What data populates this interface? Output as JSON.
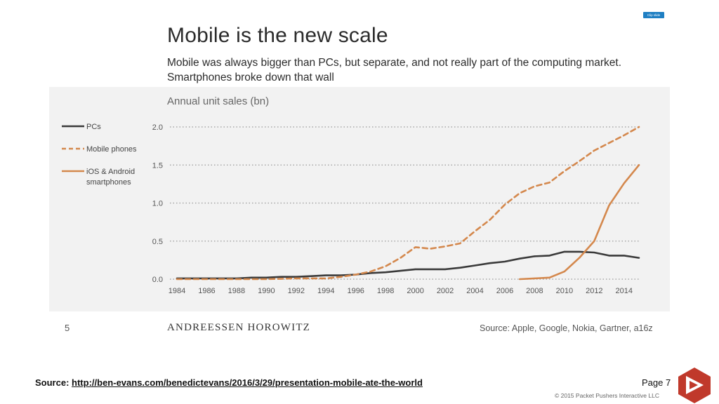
{
  "slide": {
    "title": "Mobile is the new scale",
    "subtitle": "Mobile was always bigger than PCs, but separate, and not really part of the computing market. Smartphones broke down that wall",
    "clip_badge": "Clip slide",
    "number": "5",
    "brand": "ANDREESSEN HOROWITZ",
    "chart_source": "Source: Apple, Google, Nokia, Gartner, a16z"
  },
  "footer": {
    "source_label": "Source:",
    "source_url": "http://ben-evans.com/benedictevans/2016/3/29/presentation-mobile-ate-the-world",
    "page_label": "Page",
    "page_number": "7",
    "copyright": "© 2015 Packet Pushers Interactive LLC"
  },
  "colors": {
    "pcs": "#3a3a3a",
    "mobile": "#d4884d",
    "smartphones": "#d4884d",
    "grid": "#999999",
    "panel": "#f2f2f2",
    "logo": "#c0392b"
  },
  "chart_data": {
    "type": "line",
    "title": "Annual unit sales (bn)",
    "xlim": [
      1984,
      2015
    ],
    "ylim": [
      0,
      2.0
    ],
    "yticks": [
      0.0,
      0.5,
      1.0,
      1.5,
      2.0
    ],
    "ytick_labels": [
      "0.0",
      "0.5",
      "1.0",
      "1.5",
      "2.0"
    ],
    "xticks": [
      1984,
      1986,
      1988,
      1990,
      1992,
      1994,
      1996,
      1998,
      2000,
      2002,
      2004,
      2006,
      2008,
      2010,
      2012,
      2014
    ],
    "xtick_labels": [
      "1984",
      "1986",
      "1988",
      "1990",
      "1992",
      "1994",
      "1996",
      "1998",
      "2000",
      "2002",
      "2004",
      "2006",
      "2008",
      "2010",
      "2012",
      "2014"
    ],
    "grid": "horizontal dotted",
    "legend_position": "left",
    "series": [
      {
        "name": "PCs",
        "style": "solid",
        "x": [
          1984,
          1985,
          1986,
          1987,
          1988,
          1989,
          1990,
          1991,
          1992,
          1993,
          1994,
          1995,
          1996,
          1997,
          1998,
          1999,
          2000,
          2001,
          2002,
          2003,
          2004,
          2005,
          2006,
          2007,
          2008,
          2009,
          2010,
          2011,
          2012,
          2013,
          2014,
          2015
        ],
        "values": [
          0.01,
          0.01,
          0.01,
          0.01,
          0.01,
          0.02,
          0.02,
          0.03,
          0.03,
          0.04,
          0.05,
          0.05,
          0.06,
          0.08,
          0.09,
          0.11,
          0.13,
          0.13,
          0.13,
          0.15,
          0.18,
          0.21,
          0.23,
          0.27,
          0.3,
          0.31,
          0.36,
          0.36,
          0.35,
          0.31,
          0.31,
          0.28
        ]
      },
      {
        "name": "Mobile phones",
        "style": "dashed",
        "x": [
          1984,
          1986,
          1988,
          1990,
          1992,
          1993,
          1994,
          1995,
          1996,
          1997,
          1998,
          1999,
          2000,
          2001,
          2002,
          2003,
          2004,
          2005,
          2006,
          2007,
          2008,
          2009,
          2010,
          2011,
          2012,
          2013,
          2014,
          2015
        ],
        "values": [
          0.0,
          0.0,
          0.0,
          0.0,
          0.01,
          0.01,
          0.01,
          0.03,
          0.06,
          0.1,
          0.17,
          0.28,
          0.42,
          0.4,
          0.43,
          0.47,
          0.63,
          0.78,
          0.98,
          1.13,
          1.22,
          1.27,
          1.42,
          1.55,
          1.69,
          1.79,
          1.89,
          2.0
        ]
      },
      {
        "name": "iOS & Android smartphones",
        "style": "solid",
        "x": [
          2007,
          2008,
          2009,
          2010,
          2011,
          2012,
          2013,
          2014,
          2015
        ],
        "values": [
          0.0,
          0.01,
          0.02,
          0.1,
          0.28,
          0.5,
          0.97,
          1.26,
          1.5
        ]
      }
    ]
  }
}
